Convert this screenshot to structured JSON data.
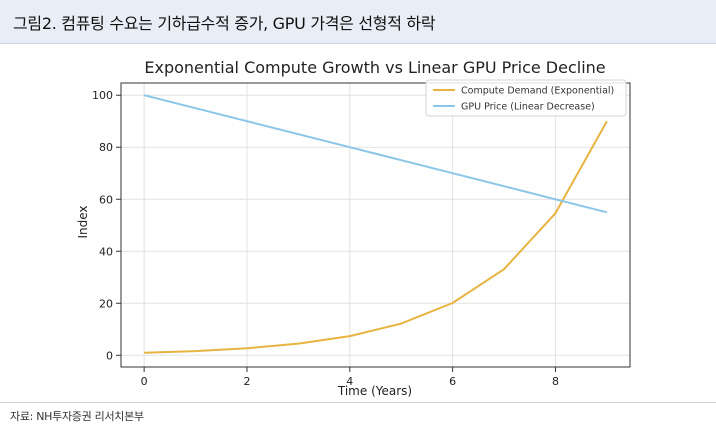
{
  "header": {
    "title": "그림2. 컴퓨팅 수요는 기하급수적 증가, GPU 가격은 선형적 하락"
  },
  "footer": {
    "source": "자료: NH투자증권 리서치본부"
  },
  "colors": {
    "demand": "#e8b441",
    "price": "#89c6e8",
    "grid": "#e2e2e2",
    "axis": "#333333",
    "header_bg": "#e8edf6"
  },
  "chart_data": {
    "type": "line",
    "title": "Exponential Compute Growth vs Linear GPU Price Decline",
    "xlabel": "Time (Years)",
    "ylabel": "Index",
    "xlim": [
      -0.45,
      9.45
    ],
    "ylim": [
      -4.5,
      104.7
    ],
    "xticks": [
      0,
      2,
      4,
      6,
      8
    ],
    "yticks": [
      0,
      20,
      40,
      60,
      80,
      100
    ],
    "grid": true,
    "legend_position": "top-right",
    "x": [
      0,
      1,
      2,
      3,
      4,
      5,
      6,
      7,
      8,
      9
    ],
    "series": [
      {
        "name": "Compute Demand (Exponential)",
        "values": [
          1,
          1.6,
          2.7,
          4.5,
          7.4,
          12.2,
          20.1,
          33.1,
          54.6,
          90.0
        ]
      },
      {
        "name": "GPU Price (Linear Decrease)",
        "values": [
          100,
          95,
          90,
          85,
          80,
          75,
          70,
          65,
          60,
          55
        ]
      }
    ]
  }
}
